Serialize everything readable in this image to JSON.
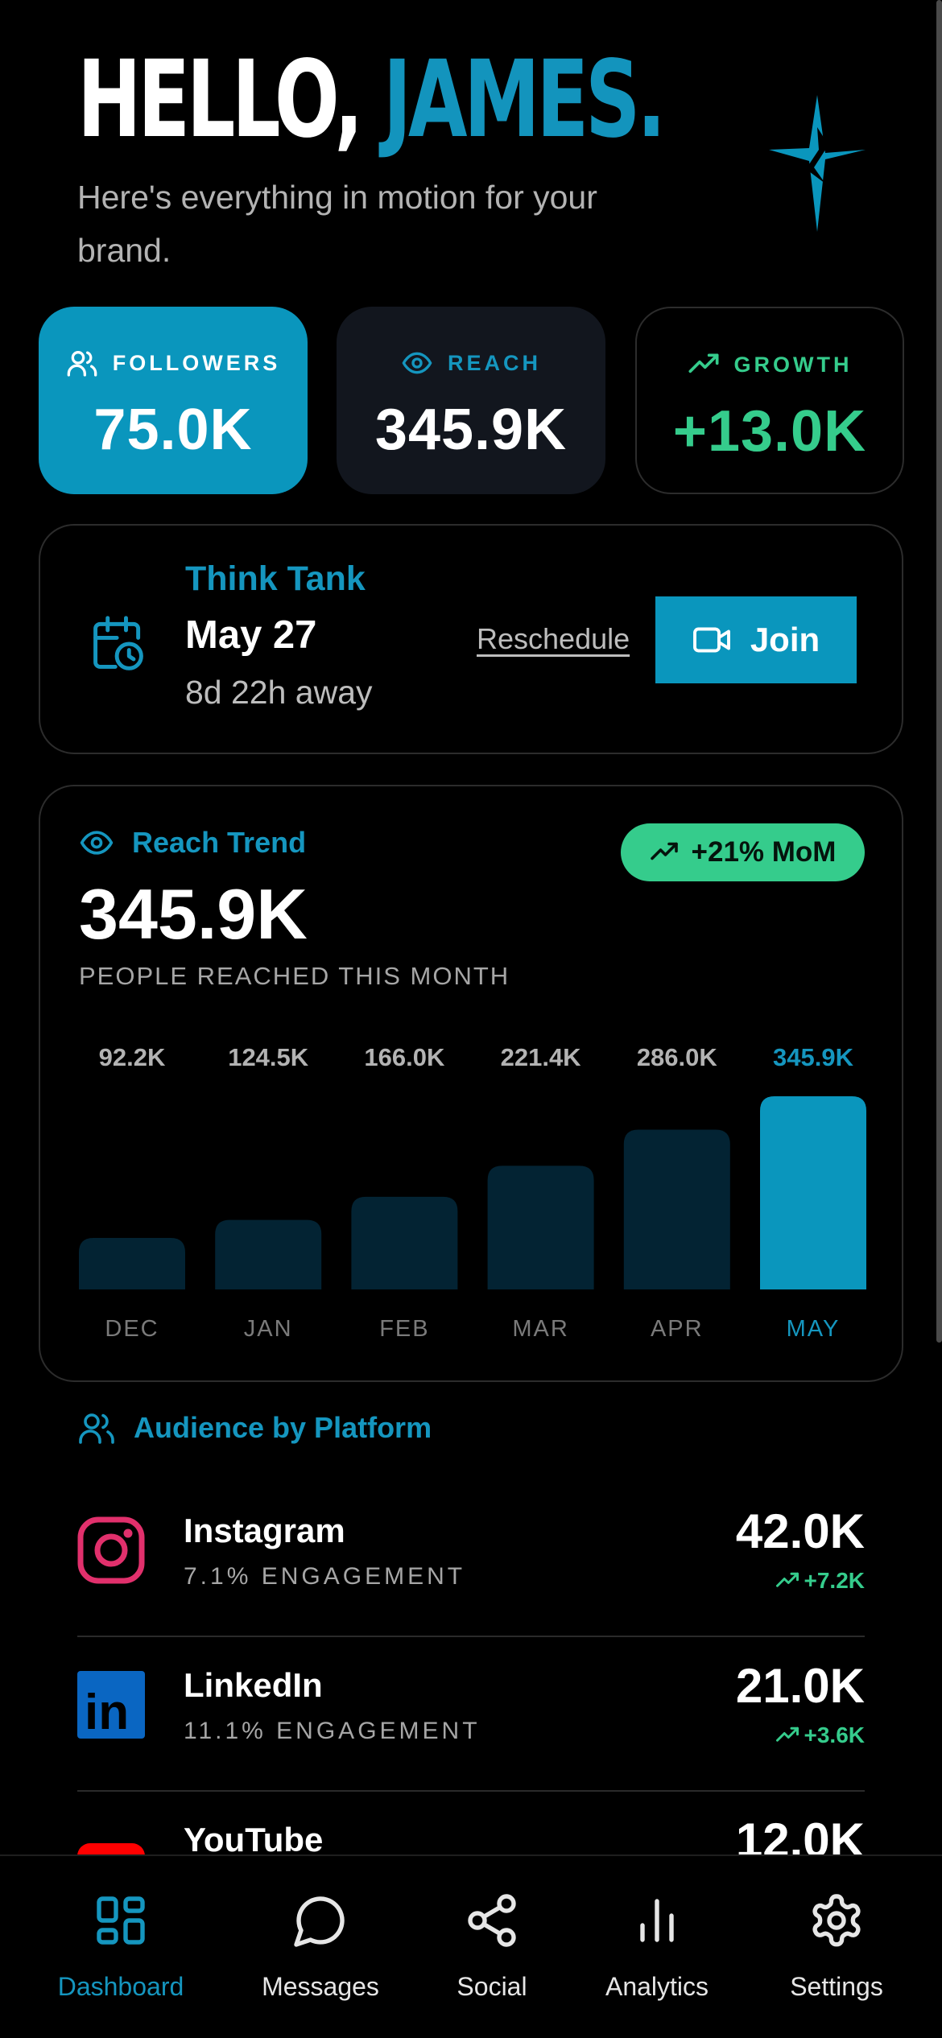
{
  "header": {
    "greeting_prefix": "HELLO, ",
    "greeting_name": "JAMES.",
    "subtitle": "Here's everything in motion for your brand."
  },
  "stats": {
    "followers": {
      "label": "FOLLOWERS",
      "value": "75.0K",
      "icon": "users-icon"
    },
    "reach": {
      "label": "REACH",
      "value": "345.9K",
      "icon": "eye-icon"
    },
    "growth": {
      "label": "GROWTH",
      "value": "+13.0K",
      "icon": "trending-up-icon"
    }
  },
  "meeting": {
    "title": "Think Tank",
    "date": "May 27",
    "countdown": "8d 22h away",
    "reschedule_label": "Reschedule",
    "join_label": "Join"
  },
  "trend": {
    "title": "Reach Trend",
    "badge": "+21% MoM",
    "value": "345.9K",
    "caption": "PEOPLE REACHED THIS MONTH"
  },
  "chart_data": {
    "type": "bar",
    "categories": [
      "DEC",
      "JAN",
      "FEB",
      "MAR",
      "APR",
      "MAY"
    ],
    "values": [
      92.2,
      124.5,
      166.0,
      221.4,
      286.0,
      345.9
    ],
    "value_labels": [
      "92.2K",
      "124.5K",
      "166.0K",
      "221.4K",
      "286.0K",
      "345.9K"
    ],
    "highlight_index": 5,
    "colors": {
      "bar": "#032333",
      "highlight": "#0a96bd",
      "label": "#b3b3b3",
      "highlight_label": "#1596bf"
    }
  },
  "audience": {
    "title": "Audience by Platform",
    "platforms": [
      {
        "name": "Instagram",
        "engagement": "7.1% ENGAGEMENT",
        "value": "42.0K",
        "delta": "+7.2K",
        "icon": "instagram-icon"
      },
      {
        "name": "LinkedIn",
        "engagement": "11.1% ENGAGEMENT",
        "value": "21.0K",
        "delta": "+3.6K",
        "icon": "linkedin-icon"
      },
      {
        "name": "YouTube",
        "engagement": "",
        "value": "12.0K",
        "delta": "",
        "icon": "youtube-icon"
      }
    ]
  },
  "nav": {
    "items": [
      {
        "label": "Dashboard",
        "icon": "dashboard-icon",
        "active": true
      },
      {
        "label": "Messages",
        "icon": "messages-icon"
      },
      {
        "label": "Social",
        "icon": "share-icon"
      },
      {
        "label": "Analytics",
        "icon": "analytics-icon"
      },
      {
        "label": "Settings",
        "icon": "gear-icon"
      }
    ]
  },
  "colors": {
    "accent": "#0a96bd",
    "positive": "#35cc8c",
    "background": "#000000"
  }
}
